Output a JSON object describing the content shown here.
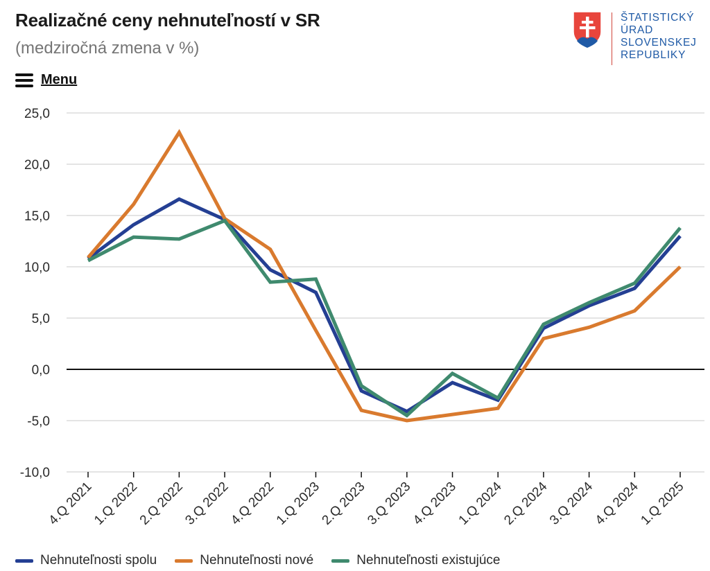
{
  "header": {
    "title": "Realizačné ceny nehnuteľností v SR",
    "subtitle": "(medziročná zmena v %)"
  },
  "menu": {
    "label": "Menu",
    "icon": "hamburger-icon"
  },
  "logo": {
    "lines": [
      "ŠTATISTICKÝ",
      "ÚRAD",
      "SLOVENSKEJ",
      "REPUBLIKY"
    ],
    "color": "#1f5aa6"
  },
  "colors": {
    "spolu": "#243f93",
    "nove": "#d97a2e",
    "existujuce": "#3f8a6e"
  },
  "chart_data": {
    "type": "line",
    "title": "Realizačné ceny nehnuteľností v SR",
    "subtitle": "(medziročná zmena v %)",
    "xlabel": "",
    "ylabel": "",
    "ylim": [
      -10,
      25
    ],
    "yticks": [
      "25,0",
      "20,0",
      "15,0",
      "10,0",
      "5,0",
      "0,0",
      "-5,0",
      "-10,0"
    ],
    "ytick_values": [
      25,
      20,
      15,
      10,
      5,
      0,
      -5,
      -10
    ],
    "grid": true,
    "legend_position": "bottom-left",
    "categories": [
      "4.Q 2021",
      "1.Q 2022",
      "2.Q 2022",
      "3.Q 2022",
      "4.Q 2022",
      "1.Q 2023",
      "2.Q 2023",
      "3.Q 2023",
      "4.Q 2023",
      "1.Q 2024",
      "2.Q 2024",
      "3.Q 2024",
      "4.Q 2024",
      "1.Q 2025"
    ],
    "series": [
      {
        "key": "spolu",
        "name": "Nehnuteľnosti spolu",
        "color": "#243f93",
        "values": [
          10.8,
          14.1,
          16.6,
          14.6,
          9.7,
          7.5,
          -2.1,
          -4.1,
          -1.3,
          -3.0,
          4.0,
          6.2,
          7.9,
          13.0
        ]
      },
      {
        "key": "nove",
        "name": "Nehnuteľnosti nové",
        "color": "#d97a2e",
        "values": [
          10.9,
          16.1,
          23.1,
          14.7,
          11.7,
          3.8,
          -4.0,
          -5.0,
          -4.4,
          -3.8,
          3.0,
          4.1,
          5.7,
          10.0
        ]
      },
      {
        "key": "existujuce",
        "name": "Nehnuteľnosti existujúce",
        "color": "#3f8a6e",
        "values": [
          10.6,
          12.9,
          12.7,
          14.5,
          8.5,
          8.8,
          -1.6,
          -4.5,
          -0.4,
          -2.8,
          4.4,
          6.5,
          8.4,
          13.8
        ]
      }
    ]
  }
}
